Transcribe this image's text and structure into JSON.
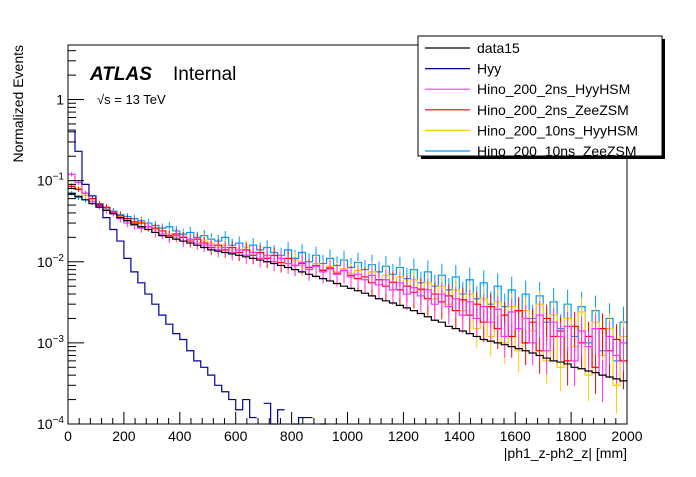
{
  "chart_data": {
    "type": "line",
    "style": "step-histogram",
    "xlabel": "|ph1_z-ph2_z| [mm]",
    "ylabel": "Normalized Events",
    "xlim": [
      0,
      2000
    ],
    "ylim": [
      0.0001,
      4.7
    ],
    "yscale": "log",
    "bin_width": 25,
    "x_ticks": [
      "0",
      "200",
      "400",
      "600",
      "800",
      "1000",
      "1200",
      "1400",
      "1600",
      "1800",
      "2000"
    ],
    "y_ticks": [
      {
        "v": 1,
        "label": "1"
      },
      {
        "v": 0.1,
        "label": "10",
        "exp": "−1"
      },
      {
        "v": 0.01,
        "label": "10",
        "exp": "−2"
      },
      {
        "v": 0.001,
        "label": "10",
        "exp": "−3"
      },
      {
        "v": 0.0001,
        "label": "10",
        "exp": "−4"
      }
    ],
    "annotations": {
      "atlas": "ATLAS",
      "status": "Internal",
      "energy_sqrt": "√s",
      "energy": " = 13 TeV"
    },
    "legend_position": "top-right",
    "series": [
      {
        "name": "data15",
        "color": "#000000",
        "values": [
          0.068,
          0.064,
          0.058,
          0.052,
          0.047,
          0.043,
          0.039,
          0.035,
          0.032,
          0.029,
          0.027,
          0.025,
          0.023,
          0.021,
          0.02,
          0.019,
          0.018,
          0.017,
          0.016,
          0.015,
          0.014,
          0.0135,
          0.013,
          0.0125,
          0.012,
          0.0115,
          0.011,
          0.0105,
          0.01,
          0.0095,
          0.009,
          0.0085,
          0.008,
          0.0075,
          0.007,
          0.0066,
          0.0062,
          0.0058,
          0.0054,
          0.005,
          0.0047,
          0.0044,
          0.0041,
          0.0038,
          0.0035,
          0.0033,
          0.0031,
          0.0029,
          0.0027,
          0.0025,
          0.0023,
          0.0021,
          0.0019,
          0.0018,
          0.0016,
          0.0015,
          0.0014,
          0.0013,
          0.0012,
          0.0011,
          0.00105,
          0.001,
          0.00095,
          0.0009,
          0.00085,
          0.0008,
          0.00075,
          0.0007,
          0.00065,
          0.0006,
          0.00058,
          0.00055,
          0.0005,
          0.00048,
          0.00045,
          0.00043,
          0.0004,
          0.00038,
          0.00036,
          0.00034
        ]
      },
      {
        "name": "Hyy",
        "color": "#000099",
        "values": [
          0.42,
          0.23,
          0.09,
          0.065,
          0.05,
          0.035,
          0.025,
          0.018,
          0.011,
          0.0075,
          0.0055,
          0.004,
          0.003,
          0.0022,
          0.0017,
          0.0013,
          0.0011,
          0.0008,
          0.0006,
          0.0005,
          0.0004,
          0.0003,
          0.00025,
          0.0002,
          0.00015,
          0.0002,
          0.00012,
          0,
          0.00018,
          0.0001,
          0.00015,
          0,
          0.0001,
          0.00012,
          0.00012,
          0,
          0.0001,
          0,
          0,
          0,
          0,
          0,
          0,
          0,
          0,
          0,
          0,
          0,
          0,
          0,
          0,
          0,
          0,
          0,
          0,
          0,
          0,
          0,
          0,
          0,
          0,
          0,
          0,
          0,
          0,
          0,
          0,
          0,
          0,
          0,
          0,
          0,
          0,
          0,
          0,
          0,
          0,
          0,
          0,
          0
        ]
      },
      {
        "name": "Hino_200_2ns_HyyHSM",
        "color": "#ff33ff",
        "values": [
          0.12,
          0.095,
          0.07,
          0.055,
          0.048,
          0.043,
          0.04,
          0.034,
          0.03,
          0.028,
          0.026,
          0.027,
          0.023,
          0.022,
          0.02,
          0.021,
          0.018,
          0.019,
          0.017,
          0.016,
          0.016,
          0.014,
          0.015,
          0.013,
          0.014,
          0.012,
          0.013,
          0.011,
          0.012,
          0.01,
          0.011,
          0.0095,
          0.009,
          0.0098,
          0.008,
          0.0088,
          0.0075,
          0.0085,
          0.007,
          0.0078,
          0.0065,
          0.007,
          0.006,
          0.0068,
          0.0052,
          0.006,
          0.0045,
          0.0055,
          0.004,
          0.0048,
          0.0038,
          0.0045,
          0.003,
          0.004,
          0.0028,
          0.0035,
          0.0022,
          0.0032,
          0.002,
          0.0028,
          0.0018,
          0.0026,
          0.0012,
          0.0024,
          0.0015,
          0.002,
          0.001,
          0.0022,
          0.0008,
          0.0018,
          0.0012,
          0.0016,
          0.0006,
          0.0014,
          0.0009,
          0.0015,
          0.0004,
          0.0012,
          0.0007,
          0.001
        ]
      },
      {
        "name": "Hino_200_2ns_ZeeZSM",
        "color": "#ff0000",
        "values": [
          0.085,
          0.078,
          0.07,
          0.06,
          0.052,
          0.047,
          0.041,
          0.037,
          0.034,
          0.031,
          0.03,
          0.027,
          0.026,
          0.024,
          0.021,
          0.022,
          0.02,
          0.018,
          0.019,
          0.017,
          0.015,
          0.016,
          0.014,
          0.015,
          0.013,
          0.014,
          0.012,
          0.013,
          0.011,
          0.012,
          0.0098,
          0.011,
          0.009,
          0.0095,
          0.0085,
          0.009,
          0.0078,
          0.0082,
          0.0072,
          0.0078,
          0.0068,
          0.0062,
          0.0065,
          0.0055,
          0.006,
          0.005,
          0.0056,
          0.0045,
          0.005,
          0.0042,
          0.0046,
          0.0035,
          0.004,
          0.0032,
          0.0038,
          0.0025,
          0.0034,
          0.0022,
          0.003,
          0.0018,
          0.0028,
          0.0015,
          0.0022,
          0.0012,
          0.0025,
          0.001,
          0.0018,
          0.0008,
          0.002,
          0.0012,
          0.0014,
          0.0006,
          0.0016,
          0.001,
          0.0012,
          0.0005,
          0.0015,
          0.0008,
          0.0011,
          0.0006
        ]
      },
      {
        "name": "Hino_200_10ns_HyyHSM",
        "color": "#ffcc00",
        "values": [
          0.09,
          0.08,
          0.066,
          0.056,
          0.05,
          0.044,
          0.04,
          0.036,
          0.032,
          0.03,
          0.031,
          0.027,
          0.025,
          0.024,
          0.022,
          0.02,
          0.021,
          0.019,
          0.017,
          0.018,
          0.017,
          0.015,
          0.016,
          0.014,
          0.013,
          0.015,
          0.012,
          0.013,
          0.011,
          0.012,
          0.011,
          0.0095,
          0.0105,
          0.009,
          0.0085,
          0.0095,
          0.008,
          0.0088,
          0.0075,
          0.0082,
          0.0072,
          0.0078,
          0.0065,
          0.0075,
          0.006,
          0.0068,
          0.0055,
          0.0065,
          0.005,
          0.006,
          0.0045,
          0.0055,
          0.0035,
          0.005,
          0.003,
          0.0045,
          0.0025,
          0.004,
          0.0015,
          0.0035,
          0.0012,
          0.0032,
          0.001,
          0.0028,
          0.0008,
          0.0025,
          0.0014,
          0.003,
          0.0006,
          0.0022,
          0.0005,
          0.002,
          0.0009,
          0.0024,
          0.0004,
          0.0018,
          0.0007,
          0.0015,
          0.0003,
          0.0012
        ]
      },
      {
        "name": "Hino_200_10ns_ZeeZSM",
        "color": "#0099ff",
        "values": [
          0.07,
          0.062,
          0.058,
          0.055,
          0.05,
          0.046,
          0.042,
          0.038,
          0.036,
          0.034,
          0.032,
          0.03,
          0.028,
          0.026,
          0.027,
          0.024,
          0.022,
          0.023,
          0.02,
          0.021,
          0.019,
          0.018,
          0.02,
          0.016,
          0.017,
          0.015,
          0.016,
          0.014,
          0.015,
          0.013,
          0.012,
          0.014,
          0.011,
          0.013,
          0.01,
          0.012,
          0.0095,
          0.011,
          0.009,
          0.0105,
          0.0085,
          0.0098,
          0.008,
          0.0092,
          0.0075,
          0.0088,
          0.007,
          0.0085,
          0.0062,
          0.008,
          0.0055,
          0.0075,
          0.005,
          0.0068,
          0.0045,
          0.0065,
          0.004,
          0.006,
          0.0035,
          0.0055,
          0.003,
          0.005,
          0.0028,
          0.0045,
          0.0025,
          0.004,
          0.002,
          0.0038,
          0.0018,
          0.0032,
          0.0015,
          0.003,
          0.0012,
          0.0028,
          0.001,
          0.0025,
          0.0008,
          0.002,
          0.0006,
          0.0018
        ]
      }
    ]
  }
}
